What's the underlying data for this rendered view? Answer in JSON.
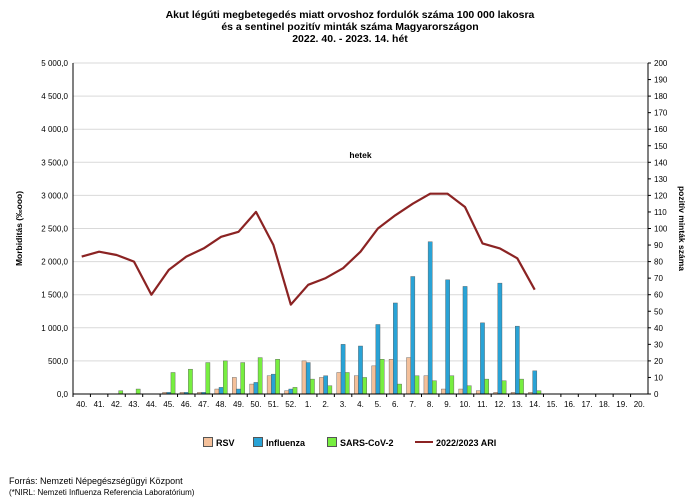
{
  "title": {
    "line1": "Akut légúti megbetegedés miatt orvoshoz fordulók száma 100 000 lakosra",
    "line2": "és a sentinel pozitív minták száma Magyarországon",
    "line3": "2022. 40. - 2023. 14. hét"
  },
  "footer": {
    "source": "Forrás: Nemzeti Népegészségügyi Központ",
    "note": "(*NIRL: Nemzeti Influenza Referencia Laboratórium)"
  },
  "chart_data": {
    "type": "bar",
    "xlabel": "hetek",
    "ylabel": "Morbiditás (‰ooo)",
    "y2label": "pozitív minták száma",
    "ylim": [
      0,
      5000
    ],
    "y2lim": [
      0,
      200
    ],
    "yticks": [
      "0,0",
      "500,0",
      "1 000,0",
      "1 500,0",
      "2 000,0",
      "2 500,0",
      "3 000,0",
      "3 500,0",
      "4 000,0",
      "4 500,0",
      "5 000,0"
    ],
    "y2ticks": [
      "0",
      "10",
      "20",
      "30",
      "40",
      "50",
      "60",
      "70",
      "80",
      "90",
      "100",
      "110",
      "120",
      "130",
      "140",
      "150",
      "160",
      "170",
      "180",
      "190",
      "200"
    ],
    "grid": true,
    "legend_position": "bottom",
    "categories": [
      "40.",
      "41.",
      "42.",
      "43.",
      "44.",
      "45.",
      "46.",
      "47.",
      "48.",
      "49.",
      "50.",
      "51.",
      "52.",
      "1.",
      "2.",
      "3.",
      "4.",
      "5.",
      "6.",
      "7.",
      "8.",
      "9.",
      "10.",
      "11.",
      "12.",
      "13.",
      "14.",
      "15.",
      "16.",
      "17.",
      "18.",
      "19.",
      "20."
    ],
    "bar_series": [
      {
        "name": "RSV",
        "color": "#f4c09a",
        "values": [
          0,
          0,
          0,
          0,
          0,
          1,
          1,
          1,
          3,
          10,
          6,
          11,
          2,
          20,
          10,
          13,
          11,
          17,
          21,
          22,
          11,
          3,
          3,
          2,
          1,
          1,
          1,
          0,
          0,
          0,
          0,
          0,
          0
        ]
      },
      {
        "name": "Influenza",
        "color": "#29a3d6",
        "values": [
          0,
          0,
          0,
          0,
          0,
          1,
          1,
          1,
          4,
          3,
          7,
          12,
          3,
          19,
          11,
          30,
          29,
          42,
          55,
          71,
          92,
          69,
          65,
          43,
          67,
          41,
          14,
          0,
          0,
          0,
          0,
          0,
          0
        ]
      },
      {
        "name": "SARS-CoV-2",
        "color": "#77ee40",
        "values": [
          0,
          0,
          2,
          3,
          0,
          13,
          15,
          19,
          20,
          19,
          22,
          21,
          4,
          9,
          5,
          13,
          10,
          21,
          6,
          11,
          8,
          11,
          5,
          9,
          8,
          9,
          2,
          0,
          0,
          0,
          0,
          0,
          0
        ]
      }
    ],
    "line_series": {
      "name": "2022/2023 ARI",
      "color": "#8b2323",
      "axis": "y2",
      "values": [
        83,
        86,
        84,
        80,
        60,
        75,
        83,
        88,
        95,
        98,
        110,
        90,
        54,
        66,
        70,
        76,
        86,
        100,
        108,
        115,
        121,
        121,
        113,
        91,
        88,
        82,
        63,
        null,
        null,
        null,
        null,
        null,
        null
      ]
    }
  }
}
